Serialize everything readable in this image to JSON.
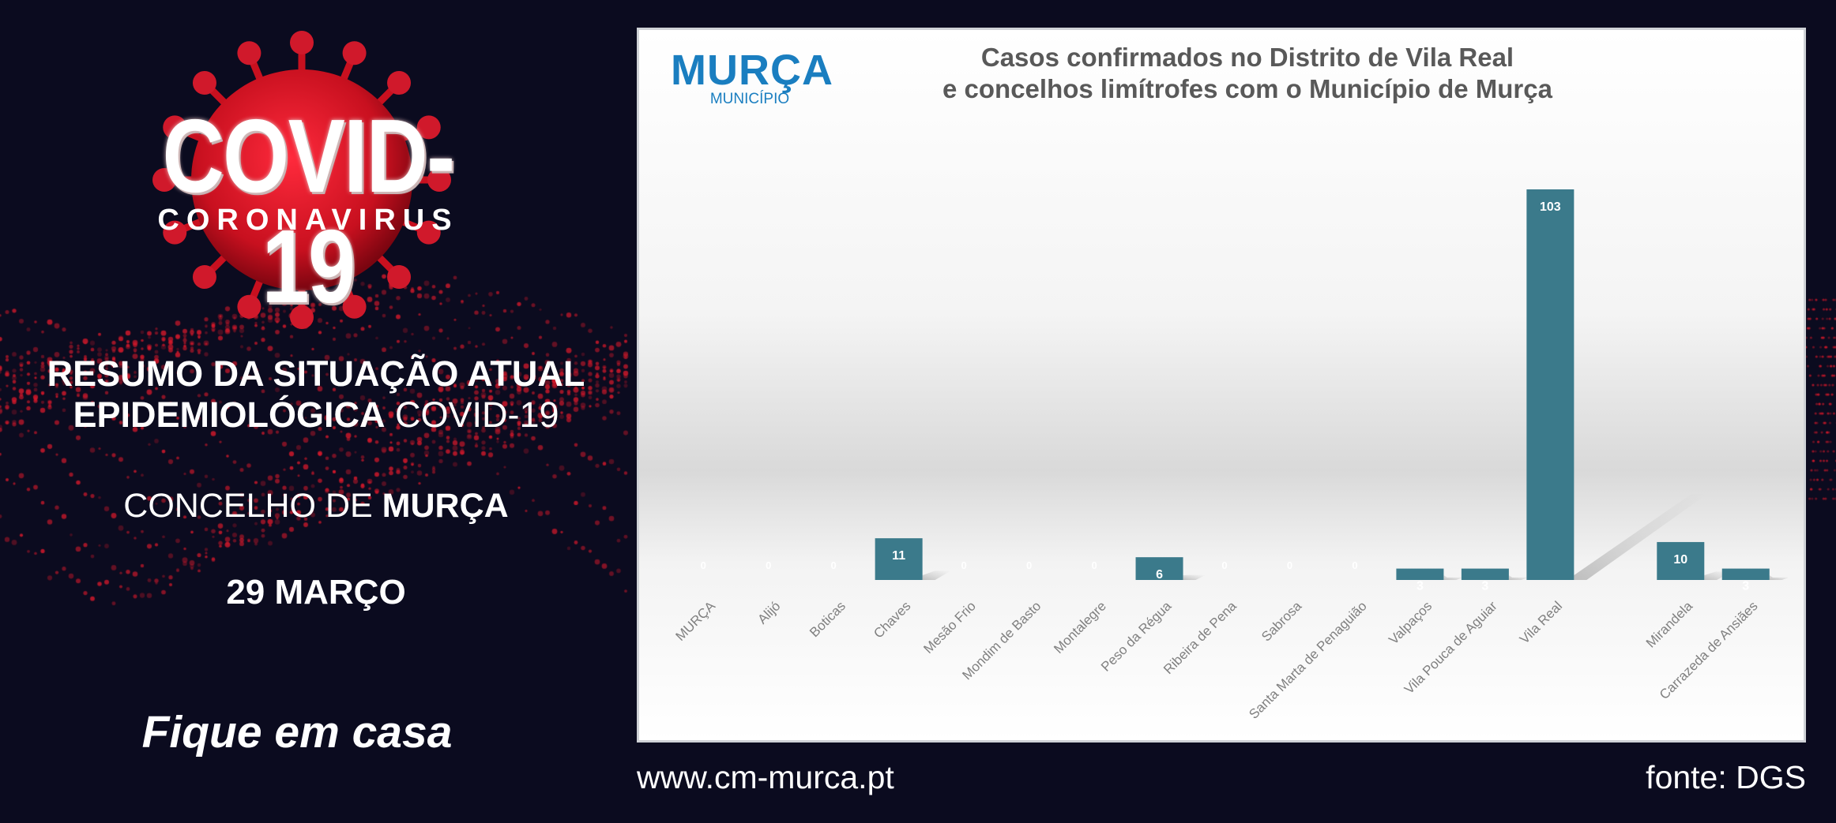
{
  "left": {
    "logo_title": "COVID-19",
    "logo_subtitle": "CORONAVIRUS",
    "summary_line1": "RESUMO DA SITUAÇÃO ATUAL",
    "summary_line2_bold": "EPIDEMIOLÓGICA",
    "summary_line2_rest": " COVID-19",
    "concelho_prefix": "CONCELHO DE ",
    "concelho_name": "MURÇA",
    "date": "29 MARÇO",
    "slogan": "Fique em casa"
  },
  "brand": {
    "name": "MURÇA",
    "sub": "MUNICÍPIO"
  },
  "footer": {
    "website": "www.cm-murca.pt",
    "source": "fonte: DGS"
  },
  "colors": {
    "background": "#0b0b1f",
    "bar": "#3b7a8b",
    "bar_label": "#ffffff",
    "axis_label": "#808080",
    "brand": "#1a7ec0",
    "accent_red": "#d0192b"
  },
  "chart_data": {
    "type": "bar",
    "title_line1": "Casos confirmados no Distrito de Vila Real",
    "title_line2": "e concelhos limítrofes com o Município de Murça",
    "categories": [
      "MURÇA",
      "Alijó",
      "Boticas",
      "Chaves",
      "Mesão Frio",
      "Mondim de Basto",
      "Montalegre",
      "Peso da Régua",
      "Ribeira de Pena",
      "Sabrosa",
      "Santa Marta de Penaguião",
      "Valpaços",
      "Vila Pouca de Aguiar",
      "Vila Real",
      "",
      "Mirandela",
      "Carrazeda de Ansiães"
    ],
    "values": [
      0,
      0,
      0,
      11,
      0,
      0,
      0,
      6,
      0,
      0,
      0,
      3,
      3,
      103,
      null,
      10,
      3
    ],
    "value_labels": [
      "0",
      "0",
      "0",
      "11",
      "0",
      "0",
      "0",
      "6",
      "0",
      "0",
      "0",
      "3",
      "3",
      "103",
      "",
      "10",
      "3"
    ],
    "ylim": [
      0,
      103
    ],
    "grid": false,
    "legend": "none"
  }
}
